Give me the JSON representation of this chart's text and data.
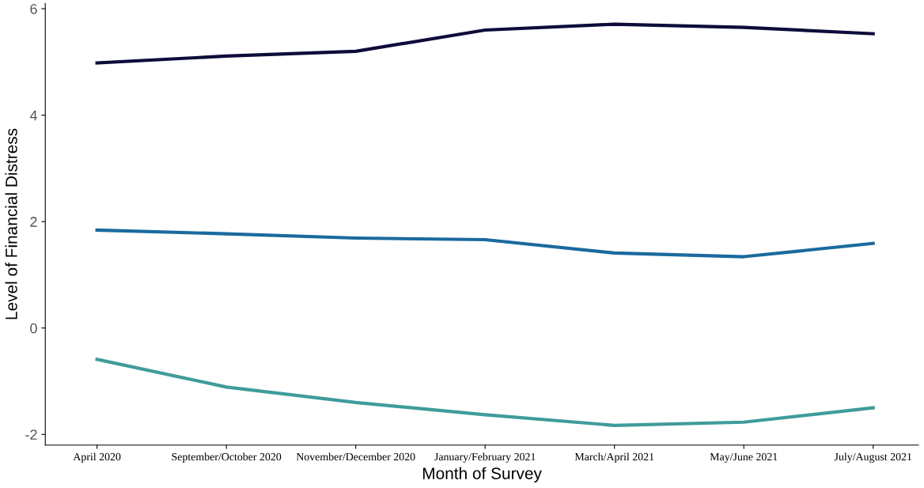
{
  "chart_data": {
    "type": "line",
    "xlabel": "Month of Survey",
    "ylabel": "Level of Financial Distress",
    "categories": [
      "April 2020",
      "September/October 2020",
      "November/December 2020",
      "January/February 2021",
      "March/April 2021",
      "May/June 2021",
      "July/August 2021"
    ],
    "series": [
      {
        "color": "#0d0c3a",
        "values": [
          4.98,
          5.11,
          5.2,
          5.6,
          5.71,
          5.65,
          5.53
        ]
      },
      {
        "color": "#1a6a9e",
        "values": [
          1.84,
          1.77,
          1.69,
          1.66,
          1.41,
          1.34,
          1.59
        ]
      },
      {
        "color": "#3f9c9a",
        "values": [
          -0.59,
          -1.11,
          -1.4,
          -1.63,
          -1.83,
          -1.77,
          -1.5
        ]
      }
    ],
    "ylim": [
      -2.2,
      6.1
    ],
    "yticks": [
      -2,
      0,
      2,
      4,
      6
    ],
    "grid": false,
    "marker": "none",
    "line_style": "solid"
  }
}
